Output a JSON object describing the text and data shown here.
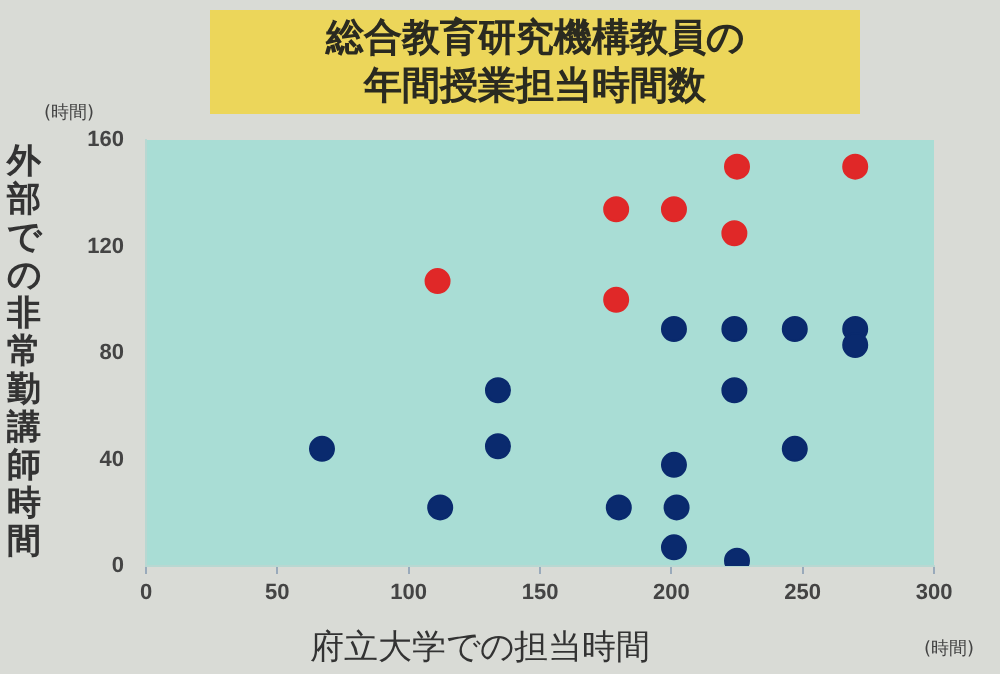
{
  "chart_data": {
    "type": "scatter",
    "title": "総合教育研究機構教員の年間授業担当時間数",
    "xlabel": "府立大学での担当時間",
    "ylabel": "外部での非常勤講師時間",
    "annotations": [
      "(時間)",
      "(時間)"
    ],
    "xlim": [
      0,
      300
    ],
    "xticks": [
      0,
      50,
      100,
      150,
      200,
      250,
      300
    ],
    "ylim": [
      0,
      160
    ],
    "yticks": [
      0,
      40,
      80,
      120,
      160
    ],
    "grid": false,
    "legend": false,
    "marker": "circle",
    "series": [
      {
        "color": "#e02828",
        "x": [
          225,
          270,
          179,
          201,
          224,
          111,
          179
        ],
        "values": [
          150,
          150,
          134,
          134,
          125,
          107,
          100
        ]
      },
      {
        "color": "#0a2a6e",
        "x": [
          201,
          224,
          247,
          270,
          270,
          134,
          224,
          67,
          134,
          247,
          201,
          112,
          180,
          202,
          201,
          225
        ],
        "values": [
          89,
          89,
          89,
          89,
          83,
          66,
          66,
          44,
          45,
          44,
          38,
          22,
          22,
          22,
          7,
          2
        ]
      }
    ]
  }
}
